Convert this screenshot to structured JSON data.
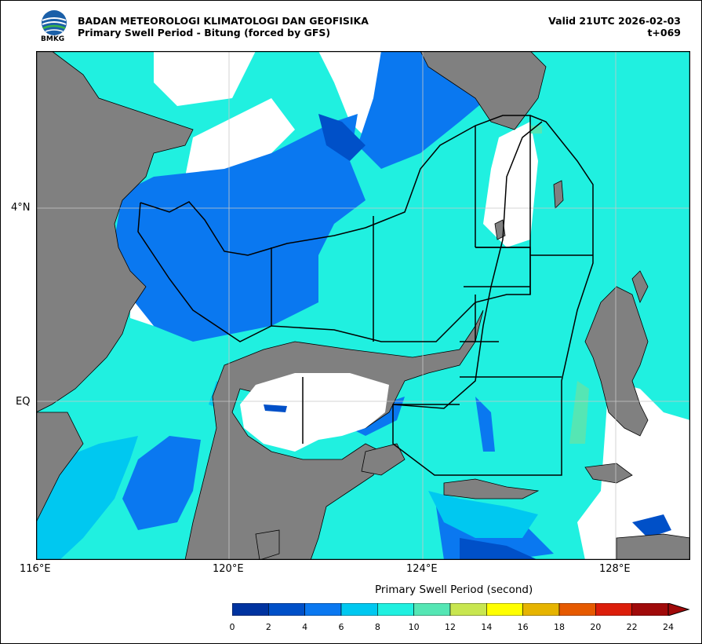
{
  "header": {
    "agency": "BADAN METEOROLOGI KLIMATOLOGI DAN GEOFISIKA",
    "product": "Primary Swell Period - Bitung (forced by GFS)",
    "valid": "Valid 21UTC 2026-02-03",
    "lead": "t+069",
    "logo_text": "BMKG"
  },
  "axes": {
    "x_ticks": [
      "116°E",
      "120°E",
      "124°E",
      "128°E"
    ],
    "y_ticks": [
      "4°N",
      "EQ"
    ]
  },
  "colorbar": {
    "title": "Primary Swell Period (second)",
    "ticks": [
      "0",
      "2",
      "4",
      "6",
      "8",
      "10",
      "12",
      "14",
      "16",
      "18",
      "20",
      "22",
      "24"
    ],
    "colors": [
      "#0033a0",
      "#0050c8",
      "#0a78f0",
      "#00c8f0",
      "#20f0e0",
      "#55e6b4",
      "#c8e650",
      "#ffff00",
      "#e6b400",
      "#e65a00",
      "#dc1e0a",
      "#a00a0a"
    ]
  },
  "colors": {
    "land": "#808080",
    "grid": "#c8c8c8",
    "no_data": "#ffffff"
  }
}
